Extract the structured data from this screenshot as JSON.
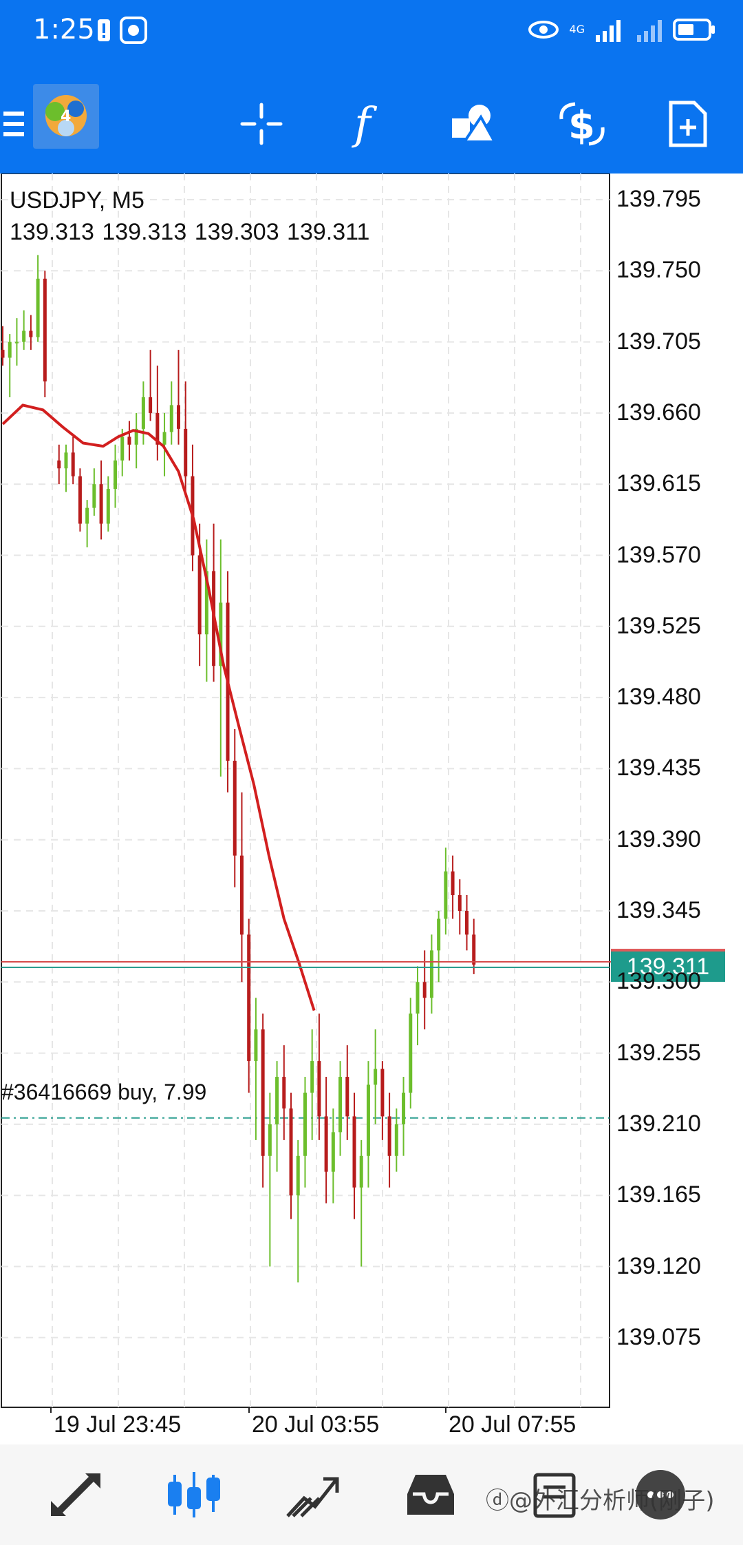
{
  "status_bar": {
    "time": "1:25",
    "network": "4G"
  },
  "toolbar": {
    "items": [
      "menu-icon",
      "crosshair-icon",
      "indicator-icon",
      "objects-icon",
      "trade-icon",
      "new-order-icon"
    ]
  },
  "chart": {
    "symbol_timeframe": "USDJPY, M5",
    "ohlc": "139.313 139.313 139.303 139.311",
    "current_price": "139.311",
    "order_label": "#36416669 buy, 7.99",
    "price_axis": [
      "139.795",
      "139.750",
      "139.705",
      "139.660",
      "139.615",
      "139.570",
      "139.525",
      "139.480",
      "139.435",
      "139.390",
      "139.345",
      "139.300",
      "139.255",
      "139.210",
      "139.165",
      "139.120",
      "139.075"
    ],
    "time_axis": [
      "19 Jul 23:45",
      "20 Jul 03:55",
      "20 Jul 07:55"
    ],
    "colors": {
      "bull": "#6cbe2c",
      "bear": "#b71c1c",
      "ma": "#d21f1f",
      "bid_line": "#d54b4b",
      "ask_line": "#2a9d8f",
      "order_line": "#2a9d8f"
    }
  },
  "chart_data": {
    "type": "candlestick",
    "symbol": "USDJPY",
    "timeframe": "M5",
    "ylim": [
      139.03,
      139.82
    ],
    "current_price": 139.311,
    "order_price": 139.214,
    "moving_average": [
      [
        0,
        139.653
      ],
      [
        20,
        139.665
      ],
      [
        40,
        139.662
      ],
      [
        60,
        139.651
      ],
      [
        80,
        139.641
      ],
      [
        100,
        139.639
      ],
      [
        115,
        139.645
      ],
      [
        130,
        139.649
      ],
      [
        145,
        139.647
      ],
      [
        160,
        139.639
      ],
      [
        175,
        139.623
      ],
      [
        190,
        139.593
      ],
      [
        205,
        139.549
      ],
      [
        220,
        139.5
      ],
      [
        235,
        139.462
      ],
      [
        250,
        139.425
      ],
      [
        265,
        139.38
      ],
      [
        280,
        139.34
      ],
      [
        295,
        139.312
      ],
      [
        310,
        139.282
      ]
    ],
    "candles": [
      [
        0,
        139.7,
        139.715,
        139.69,
        139.695
      ],
      [
        7,
        139.695,
        139.71,
        139.67,
        139.705
      ],
      [
        14,
        139.705,
        139.72,
        139.69,
        139.705
      ],
      [
        21,
        139.705,
        139.725,
        139.7,
        139.712
      ],
      [
        28,
        139.712,
        139.722,
        139.7,
        139.708
      ],
      [
        35,
        139.708,
        139.76,
        139.705,
        139.745
      ],
      [
        42,
        139.745,
        139.75,
        139.67,
        139.68
      ],
      [
        56,
        139.63,
        139.64,
        139.615,
        139.625
      ],
      [
        63,
        139.625,
        139.64,
        139.61,
        139.635
      ],
      [
        70,
        139.635,
        139.645,
        139.615,
        139.62
      ],
      [
        77,
        139.62,
        139.625,
        139.585,
        139.59
      ],
      [
        84,
        139.59,
        139.605,
        139.575,
        139.6
      ],
      [
        91,
        139.6,
        139.625,
        139.595,
        139.615
      ],
      [
        98,
        139.615,
        139.63,
        139.58,
        139.59
      ],
      [
        105,
        139.59,
        139.62,
        139.585,
        139.612
      ],
      [
        112,
        139.612,
        139.64,
        139.6,
        139.63
      ],
      [
        119,
        139.63,
        139.65,
        139.62,
        139.645
      ],
      [
        126,
        139.645,
        139.655,
        139.63,
        139.64
      ],
      [
        133,
        139.64,
        139.66,
        139.625,
        139.65
      ],
      [
        140,
        139.65,
        139.68,
        139.64,
        139.67
      ],
      [
        147,
        139.67,
        139.7,
        139.655,
        139.66
      ],
      [
        154,
        139.66,
        139.69,
        139.63,
        139.64
      ],
      [
        161,
        139.64,
        139.66,
        139.62,
        139.648
      ],
      [
        168,
        139.648,
        139.68,
        139.64,
        139.665
      ],
      [
        175,
        139.665,
        139.7,
        139.64,
        139.65
      ],
      [
        182,
        139.65,
        139.68,
        139.61,
        139.62
      ],
      [
        189,
        139.62,
        139.64,
        139.56,
        139.57
      ],
      [
        196,
        139.57,
        139.59,
        139.5,
        139.52
      ],
      [
        203,
        139.52,
        139.58,
        139.49,
        139.56
      ],
      [
        210,
        139.56,
        139.59,
        139.49,
        139.5
      ],
      [
        217,
        139.5,
        139.58,
        139.43,
        139.54
      ],
      [
        224,
        139.54,
        139.56,
        139.42,
        139.44
      ],
      [
        231,
        139.44,
        139.46,
        139.36,
        139.38
      ],
      [
        238,
        139.38,
        139.42,
        139.3,
        139.33
      ],
      [
        245,
        139.33,
        139.34,
        139.23,
        139.25
      ],
      [
        252,
        139.25,
        139.29,
        139.2,
        139.27
      ],
      [
        259,
        139.27,
        139.28,
        139.17,
        139.19
      ],
      [
        266,
        139.19,
        139.23,
        139.12,
        139.21
      ],
      [
        273,
        139.21,
        139.25,
        139.18,
        139.24
      ],
      [
        280,
        139.24,
        139.26,
        139.2,
        139.22
      ],
      [
        287,
        139.22,
        139.23,
        139.15,
        139.165
      ],
      [
        294,
        139.165,
        139.2,
        139.11,
        139.19
      ],
      [
        301,
        139.19,
        139.24,
        139.17,
        139.23
      ],
      [
        308,
        139.23,
        139.27,
        139.2,
        139.25
      ],
      [
        315,
        139.25,
        139.28,
        139.2,
        139.215
      ],
      [
        322,
        139.215,
        139.24,
        139.16,
        139.18
      ],
      [
        329,
        139.18,
        139.22,
        139.16,
        139.205
      ],
      [
        336,
        139.205,
        139.25,
        139.19,
        139.24
      ],
      [
        343,
        139.24,
        139.26,
        139.2,
        139.215
      ],
      [
        350,
        139.215,
        139.23,
        139.15,
        139.17
      ],
      [
        357,
        139.17,
        139.2,
        139.12,
        139.19
      ],
      [
        364,
        139.19,
        139.25,
        139.17,
        139.235
      ],
      [
        371,
        139.235,
        139.27,
        139.21,
        139.245
      ],
      [
        378,
        139.245,
        139.25,
        139.2,
        139.215
      ],
      [
        385,
        139.215,
        139.23,
        139.17,
        139.19
      ],
      [
        392,
        139.19,
        139.22,
        139.18,
        139.21
      ],
      [
        399,
        139.21,
        139.24,
        139.19,
        139.23
      ],
      [
        406,
        139.23,
        139.29,
        139.22,
        139.28
      ],
      [
        413,
        139.28,
        139.31,
        139.26,
        139.3
      ],
      [
        420,
        139.3,
        139.32,
        139.27,
        139.29
      ],
      [
        427,
        139.29,
        139.33,
        139.28,
        139.32
      ],
      [
        434,
        139.32,
        139.345,
        139.3,
        139.34
      ],
      [
        441,
        139.34,
        139.385,
        139.33,
        139.37
      ],
      [
        448,
        139.37,
        139.38,
        139.34,
        139.355
      ],
      [
        455,
        139.355,
        139.365,
        139.33,
        139.345
      ],
      [
        462,
        139.345,
        139.355,
        139.32,
        139.33
      ],
      [
        469,
        139.33,
        139.34,
        139.305,
        139.311
      ]
    ]
  }
}
